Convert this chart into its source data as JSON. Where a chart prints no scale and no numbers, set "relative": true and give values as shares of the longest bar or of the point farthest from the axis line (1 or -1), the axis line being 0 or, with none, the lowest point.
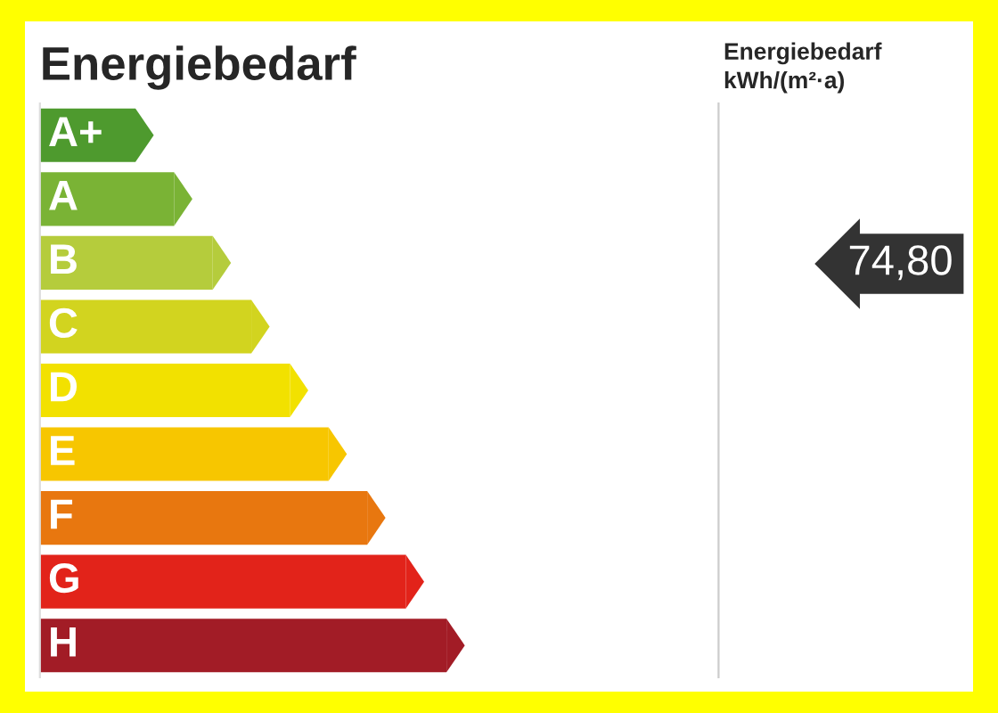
{
  "chart_data": {
    "type": "bar",
    "orientation": "horizontal",
    "relative": true,
    "tick_labels": false,
    "title": "Energiebedarf",
    "categories": [
      "A+",
      "A",
      "B",
      "C",
      "D",
      "E",
      "F",
      "G",
      "H"
    ],
    "values": [
      0.235,
      0.33,
      0.425,
      0.52,
      0.615,
      0.71,
      0.805,
      0.9,
      1.0
    ],
    "colors": [
      "#4e9a2e",
      "#7ab335",
      "#b5cc3c",
      "#d2d41f",
      "#f2e100",
      "#f7c600",
      "#e8770f",
      "#e2231a",
      "#a21c26"
    ],
    "annotations": [
      "Energiebedarf\nkWh/(m²·a)",
      "74,80"
    ]
  }
}
